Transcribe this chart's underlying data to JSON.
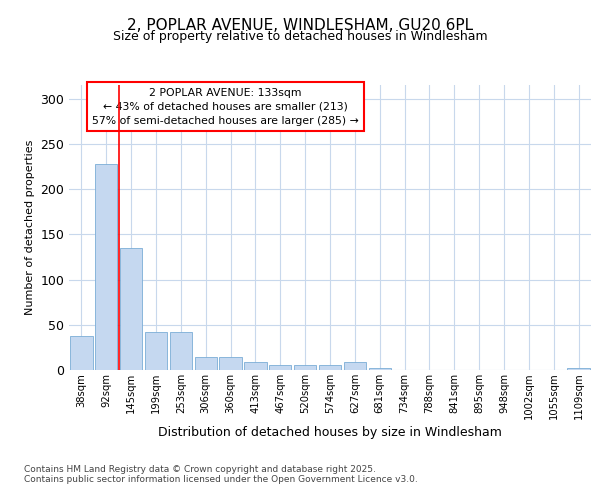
{
  "title_line1": "2, POPLAR AVENUE, WINDLESHAM, GU20 6PL",
  "title_line2": "Size of property relative to detached houses in Windlesham",
  "xlabel": "Distribution of detached houses by size in Windlesham",
  "ylabel": "Number of detached properties",
  "categories": [
    "38sqm",
    "92sqm",
    "145sqm",
    "199sqm",
    "253sqm",
    "306sqm",
    "360sqm",
    "413sqm",
    "467sqm",
    "520sqm",
    "574sqm",
    "627sqm",
    "681sqm",
    "734sqm",
    "788sqm",
    "841sqm",
    "895sqm",
    "948sqm",
    "1002sqm",
    "1055sqm",
    "1109sqm"
  ],
  "values": [
    38,
    228,
    135,
    42,
    42,
    14,
    14,
    9,
    5,
    5,
    5,
    9,
    2,
    0,
    0,
    0,
    0,
    0,
    0,
    0,
    2
  ],
  "bar_color": "#c5d8f0",
  "bar_edge_color": "#7badd6",
  "red_line_x": 1.5,
  "annotation_text": "2 POPLAR AVENUE: 133sqm\n← 43% of detached houses are smaller (213)\n57% of semi-detached houses are larger (285) →",
  "annotation_box_color": "white",
  "annotation_box_edge_color": "red",
  "footer_text": "Contains HM Land Registry data © Crown copyright and database right 2025.\nContains public sector information licensed under the Open Government Licence v3.0.",
  "background_color": "#ffffff",
  "plot_background_color": "#ffffff",
  "grid_color": "#c8d8ec",
  "ylim": [
    0,
    315
  ],
  "yticks": [
    0,
    50,
    100,
    150,
    200,
    250,
    300
  ]
}
